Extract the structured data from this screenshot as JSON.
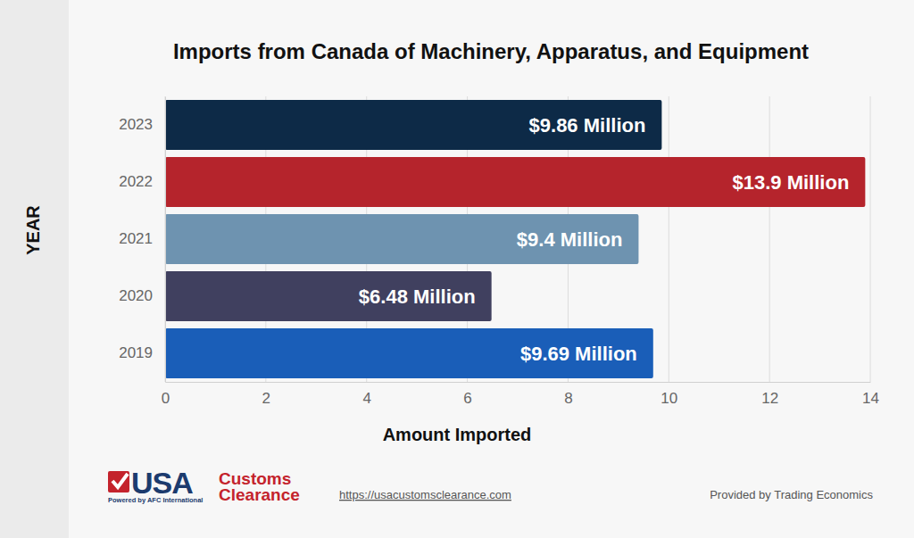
{
  "chart_data": {
    "type": "bar",
    "orientation": "horizontal",
    "title": "Imports from Canada of Machinery, Apparatus, and Equipment",
    "x_label": "Amount Imported",
    "y_label": "YEAR",
    "categories": [
      "2023",
      "2022",
      "2021",
      "2020",
      "2019"
    ],
    "values": [
      9.86,
      13.9,
      9.4,
      6.48,
      9.69
    ],
    "value_labels": [
      "$9.86 Million",
      "$13.9 Million",
      "$9.4 Million",
      "$6.48 Million",
      "$9.69 Million"
    ],
    "colors": [
      "#0d2a47",
      "#b5242c",
      "#6e93b0",
      "#40405f",
      "#1a5eb8"
    ],
    "xlim": [
      0,
      14
    ],
    "xticks": [
      0,
      2,
      4,
      6,
      8,
      10,
      12,
      14
    ],
    "grid": true,
    "data_labels": true,
    "annotations": [
      "USA",
      "Customs",
      "Clearance",
      "Powered by AFC International",
      "https://usacustomsclearance.com",
      "Provided by Trading Economics"
    ]
  }
}
